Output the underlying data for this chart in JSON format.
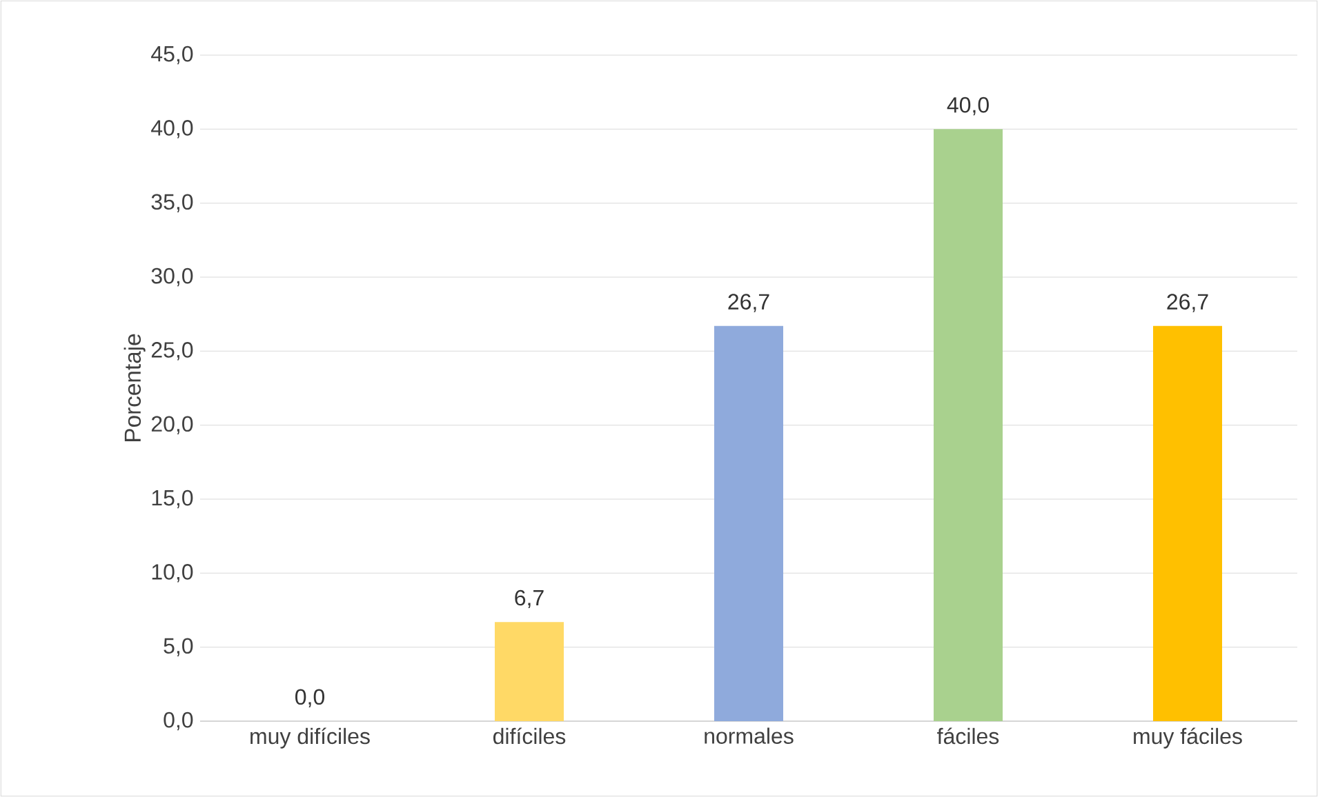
{
  "chart_data": {
    "type": "bar",
    "ylabel": "Porcentaje",
    "categories": [
      "muy difíciles",
      "difíciles",
      "normales",
      "fáciles",
      "muy fáciles"
    ],
    "values": [
      0.0,
      6.7,
      26.7,
      40.0,
      26.7
    ],
    "value_labels": [
      "0,0",
      "6,7",
      "26,7",
      "40,0",
      "26,7"
    ],
    "colors": [
      "#4472c4",
      "#ffd966",
      "#8faadc",
      "#a9d18e",
      "#ffc000"
    ],
    "ylim": [
      0,
      45
    ],
    "yticks": [
      {
        "value": 0,
        "label": "0,0"
      },
      {
        "value": 5,
        "label": "5,0"
      },
      {
        "value": 10,
        "label": "10,0"
      },
      {
        "value": 15,
        "label": "15,0"
      },
      {
        "value": 20,
        "label": "20,0"
      },
      {
        "value": 25,
        "label": "25,0"
      },
      {
        "value": 30,
        "label": "30,0"
      },
      {
        "value": 35,
        "label": "35,0"
      },
      {
        "value": 40,
        "label": "40,0"
      },
      {
        "value": 45,
        "label": "45,0"
      }
    ],
    "grid": "y"
  }
}
